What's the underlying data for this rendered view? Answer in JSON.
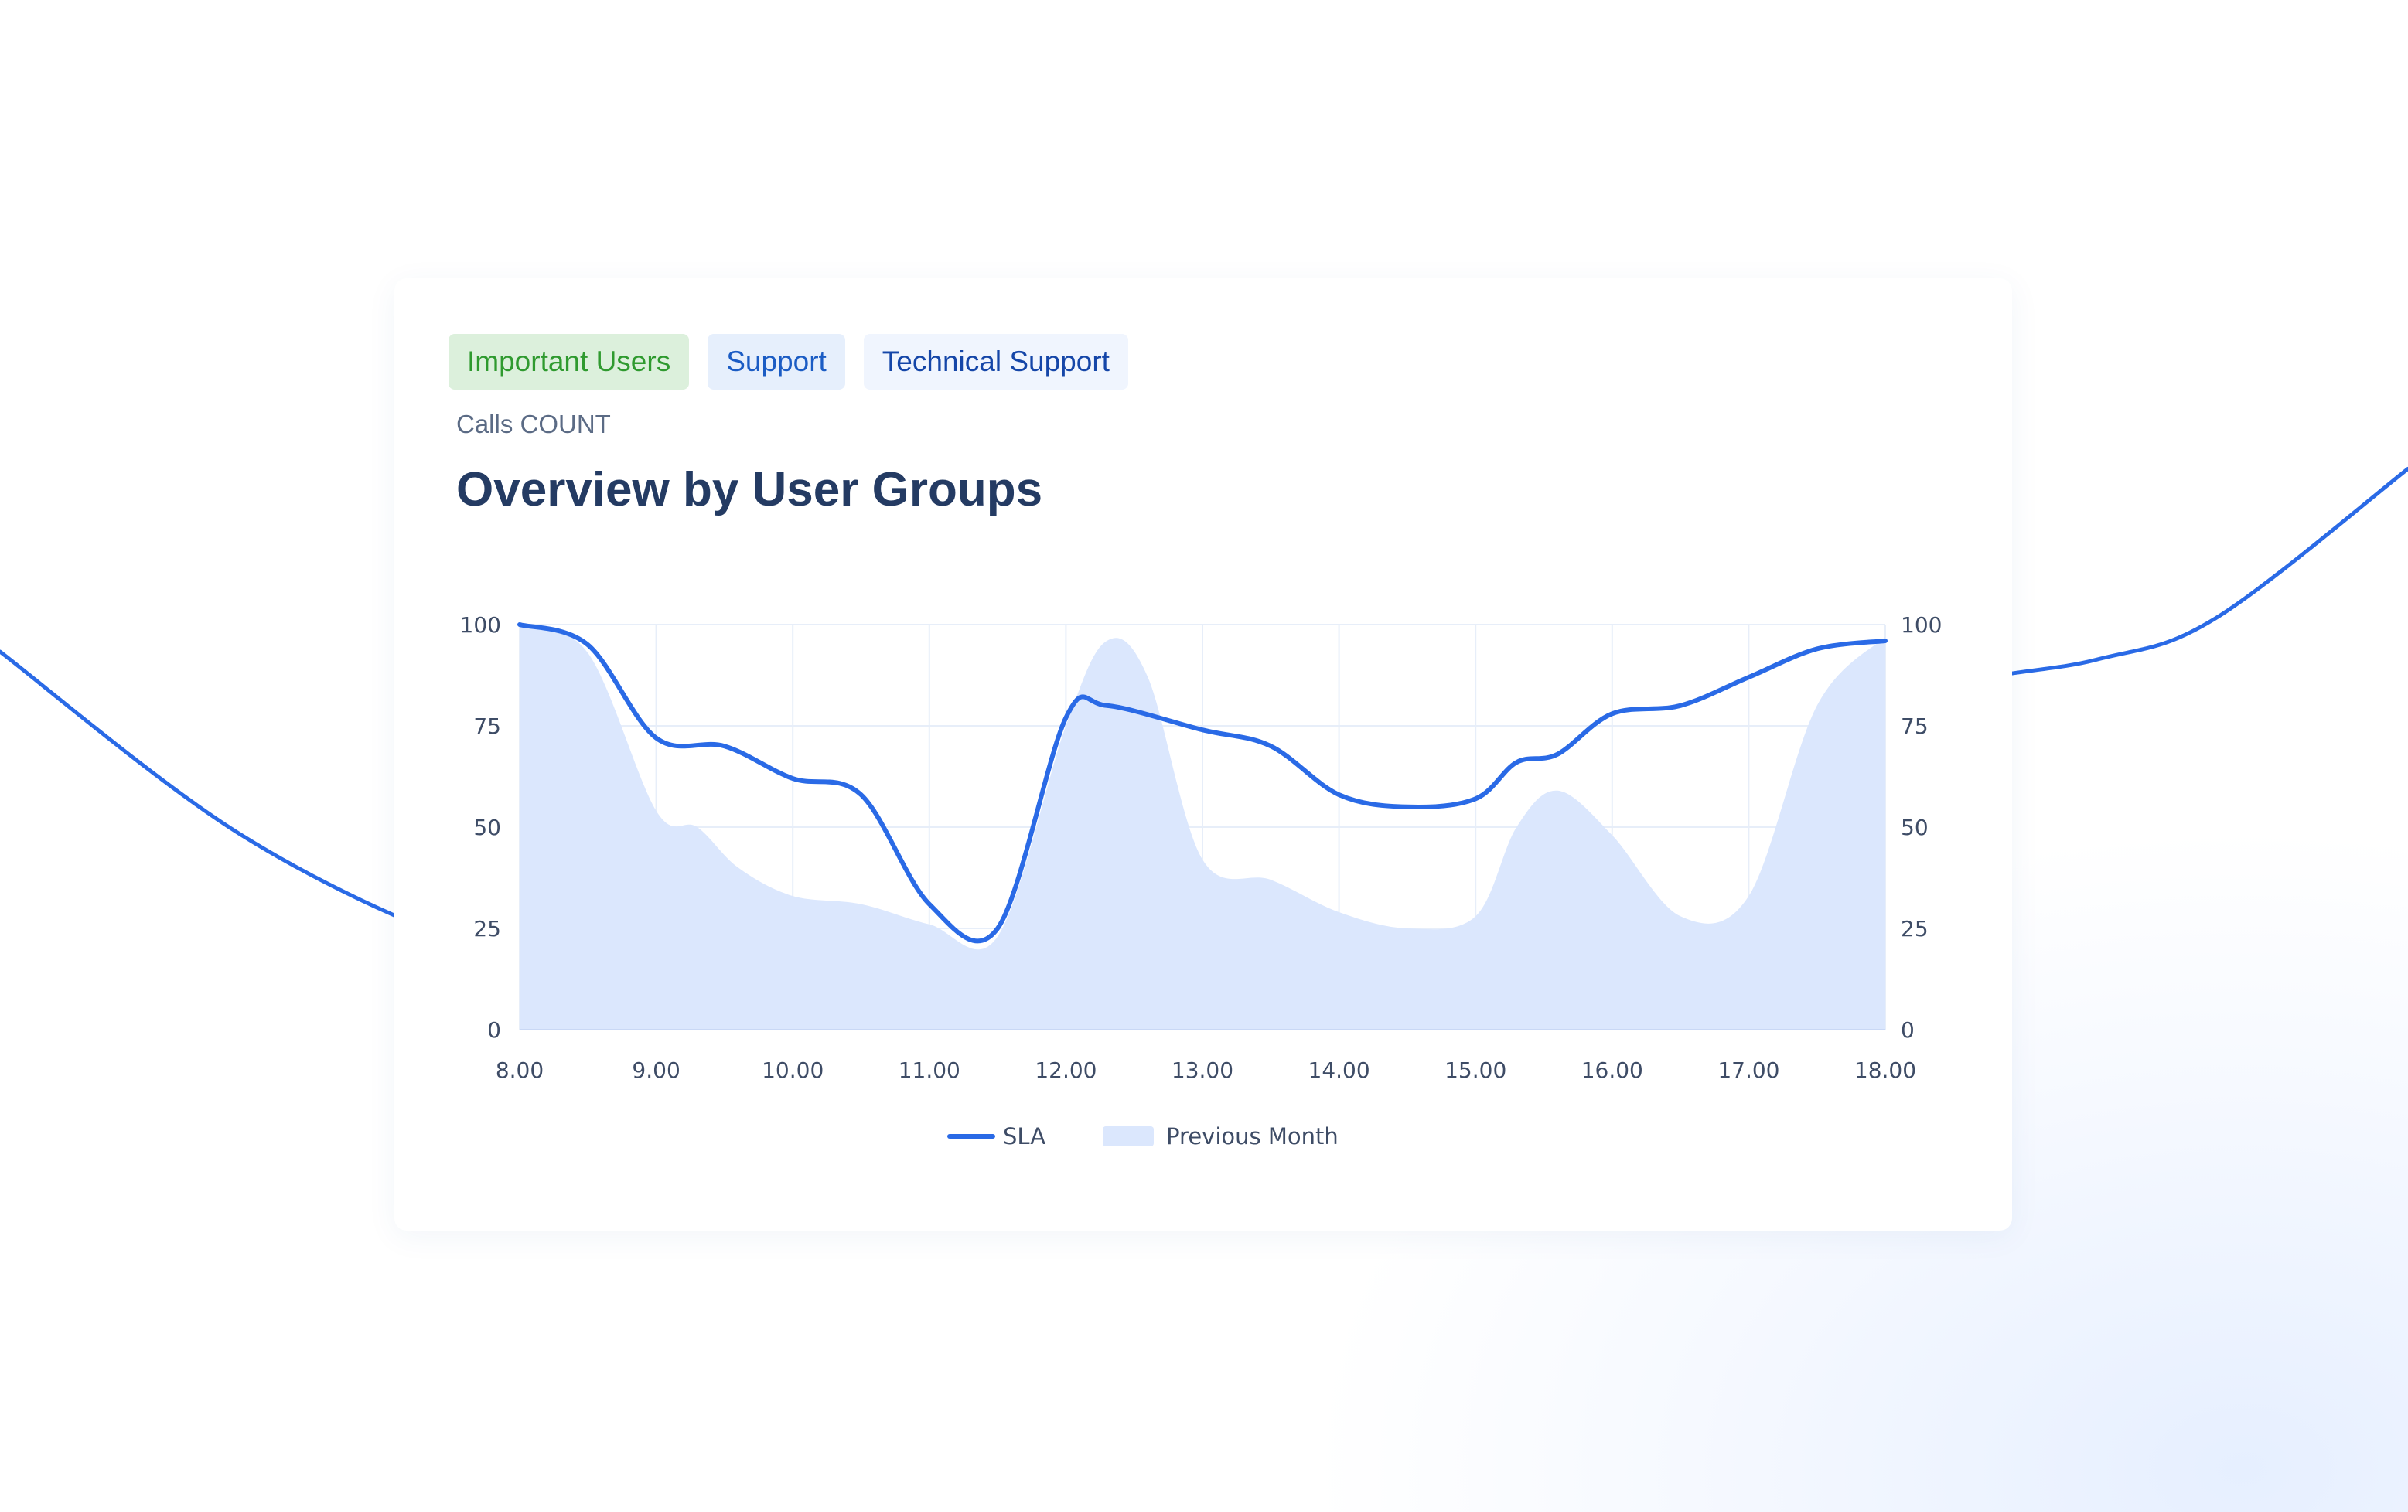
{
  "colors": {
    "sla_line": "#2a6ae6",
    "previous_area": "#dbe7fd",
    "grid": "#e7eef9",
    "baseline": "#c9d8f5",
    "tab_important_bg": "#dcf0dc",
    "tab_important_text": "#2f9a2f",
    "tab_support_bg": "#e6effc",
    "tab_support_text": "#1b5cc4",
    "tab_technical_bg": "#f0f5fe",
    "tab_technical_text": "#1546a8"
  },
  "tabs": [
    {
      "label": "Important Users"
    },
    {
      "label": "Support"
    },
    {
      "label": "Technical Support"
    }
  ],
  "card": {
    "subtitle": "Calls COUNT",
    "title": "Overview by User Groups"
  },
  "legend": {
    "sla": "SLA",
    "previous": "Previous Month"
  },
  "chart_data": {
    "type": "line",
    "title": "Overview by User Groups",
    "subtitle": "Calls COUNT",
    "x_tick_labels": [
      "8.00",
      "9.00",
      "10.00",
      "11.00",
      "12.00",
      "13.00",
      "14.00",
      "15.00",
      "16.00",
      "17.00",
      "18.00"
    ],
    "xlim": [
      8,
      18
    ],
    "y_ticks_left": [
      0,
      25,
      50,
      75,
      100
    ],
    "y_ticks_right": [
      0,
      25,
      50,
      75,
      100
    ],
    "ylim": [
      0,
      100
    ],
    "grid": true,
    "legend_position": "bottom-center",
    "series": [
      {
        "name": "SLA",
        "type": "line",
        "x": [
          8.0,
          8.5,
          9.0,
          9.5,
          10.0,
          10.5,
          11.0,
          11.5,
          12.0,
          12.3,
          13.0,
          13.5,
          14.0,
          14.5,
          15.0,
          15.3,
          15.6,
          16.0,
          16.5,
          17.0,
          17.5,
          18.0
        ],
        "values": [
          100,
          95,
          72,
          70,
          62,
          58,
          31,
          25,
          77,
          80,
          74,
          70,
          58,
          55,
          57,
          66,
          68,
          78,
          80,
          87,
          94,
          96
        ]
      },
      {
        "name": "Previous Month",
        "type": "area",
        "x": [
          8.0,
          8.5,
          9.0,
          9.3,
          9.6,
          10.0,
          10.5,
          11.0,
          11.5,
          12.0,
          12.3,
          12.6,
          13.0,
          13.5,
          14.0,
          14.5,
          15.0,
          15.3,
          15.6,
          16.0,
          16.5,
          17.0,
          17.5,
          18.0
        ],
        "values": [
          100,
          93,
          54,
          50,
          40,
          33,
          31,
          26,
          23,
          75,
          96,
          87,
          42,
          37,
          29,
          25,
          28,
          50,
          59,
          48,
          28,
          33,
          80,
          97
        ]
      }
    ]
  },
  "background_wave": {
    "x": [
      0,
      0.1,
      0.2,
      0.3,
      0.4,
      0.5,
      0.6,
      0.7,
      0.8,
      0.87,
      0.92,
      1.0
    ],
    "values": [
      0.58,
      0.36,
      0.22,
      0.14,
      0.16,
      0.26,
      0.34,
      0.4,
      0.53,
      0.57,
      0.62,
      0.8
    ]
  }
}
